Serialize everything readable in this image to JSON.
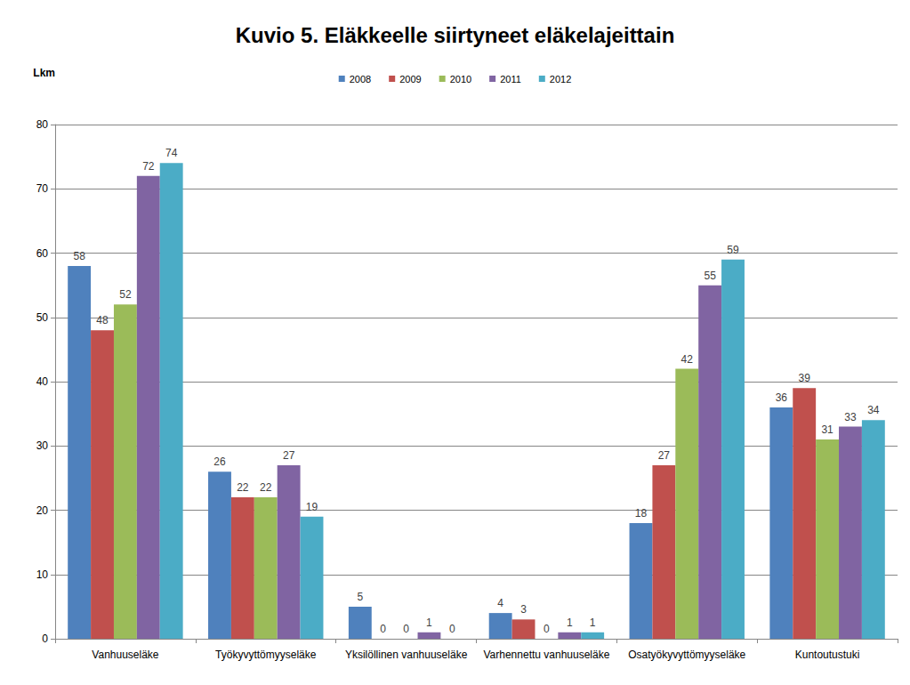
{
  "chart_data": {
    "type": "bar",
    "title": "Kuvio 5. Eläkkeelle siirtyneet eläkelajeittain",
    "y_label": "Lkm",
    "categories": [
      "Vanhuuseläke",
      "Työkyvyttömyyseläke",
      "Yksilöllinen vanhuuseläke",
      "Varhennettu vanhuuseläke",
      "Osatyökyvyttömyyseläke",
      "Kuntoutustuki"
    ],
    "series": [
      {
        "name": "2008",
        "color": "#4f81bd",
        "values": [
          58,
          26,
          5,
          4,
          18,
          36
        ]
      },
      {
        "name": "2009",
        "color": "#c0504d",
        "values": [
          48,
          22,
          0,
          3,
          27,
          39
        ]
      },
      {
        "name": "2010",
        "color": "#9bbb59",
        "values": [
          52,
          22,
          0,
          0,
          42,
          31
        ]
      },
      {
        "name": "2011",
        "color": "#8064a2",
        "values": [
          72,
          27,
          1,
          1,
          55,
          33
        ]
      },
      {
        "name": "2012",
        "color": "#4bacc6",
        "values": [
          74,
          19,
          0,
          1,
          59,
          34
        ]
      }
    ],
    "ylim": [
      0,
      80
    ],
    "yticks": [
      0,
      10,
      20,
      30,
      40,
      50,
      60,
      70,
      80
    ],
    "grid": true,
    "legend": "top",
    "data_labels": true
  }
}
